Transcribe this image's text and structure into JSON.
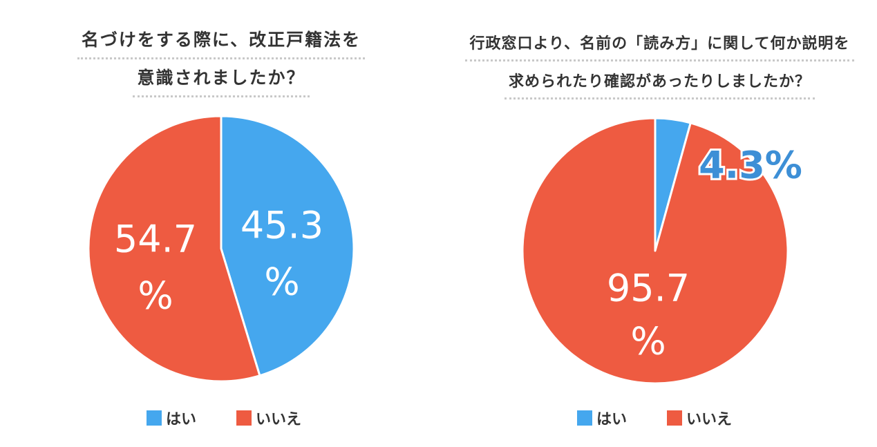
{
  "colors": {
    "yes": "#45a7ee",
    "no": "#ee5b41",
    "blue_text": "#3d8fd6"
  },
  "chart_data": [
    {
      "type": "pie",
      "title_lines": [
        "名づけをする際に、改正戸籍法を",
        "意識されましたか？"
      ],
      "slices": [
        {
          "label": "はい",
          "value": 45.3,
          "display_top": "45.3",
          "display_bottom": "%"
        },
        {
          "label": "いいえ",
          "value": 54.7,
          "display_top": "54.7",
          "display_bottom": "%"
        }
      ],
      "legend": [
        "はい",
        "いいえ"
      ],
      "legend_placement": "bottom"
    },
    {
      "type": "pie",
      "title_lines": [
        "行政窓口より、名前の「読み方」に関して何か説明を",
        "求められたり確認があったりしましたか？"
      ],
      "slices": [
        {
          "label": "はい",
          "value": 4.3,
          "display_top": "4.3%",
          "display_bottom": ""
        },
        {
          "label": "いいえ",
          "value": 95.7,
          "display_top": "95.7",
          "display_bottom": "%"
        }
      ],
      "legend": [
        "はい",
        "いいえ"
      ],
      "legend_placement": "bottom"
    }
  ]
}
